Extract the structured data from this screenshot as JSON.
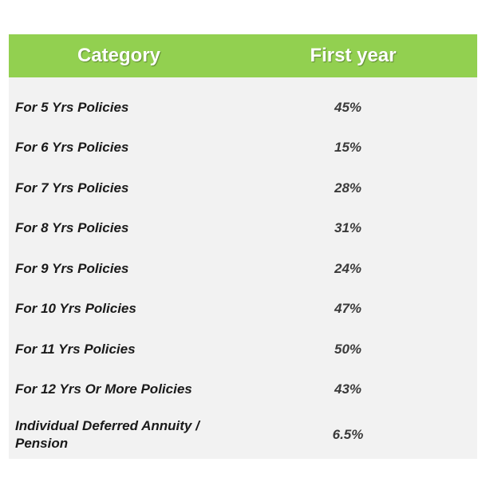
{
  "header": {
    "category": "Category",
    "first_year": "First year"
  },
  "rows": [
    {
      "category": "For 5 Yrs Policies",
      "first_year": "45%"
    },
    {
      "category": "For 6 Yrs Policies",
      "first_year": "15%"
    },
    {
      "category": "For 7 Yrs Policies",
      "first_year": "28%"
    },
    {
      "category": "For 8 Yrs Policies",
      "first_year": "31%"
    },
    {
      "category": "For 9 Yrs Policies",
      "first_year": "24%"
    },
    {
      "category": "For 10 Yrs Policies",
      "first_year": "47%"
    },
    {
      "category": "For 11 Yrs Policies",
      "first_year": "50%"
    },
    {
      "category": "For 12 Yrs Or More Policies",
      "first_year": "43%"
    },
    {
      "category": "Individual Deferred Annuity / Pension",
      "first_year": "6.5%"
    }
  ],
  "colors": {
    "header_background": "#92d050",
    "header_text": "#ffffff",
    "body_background": "#f2f2f2",
    "body_text": "#1a1a1a"
  }
}
